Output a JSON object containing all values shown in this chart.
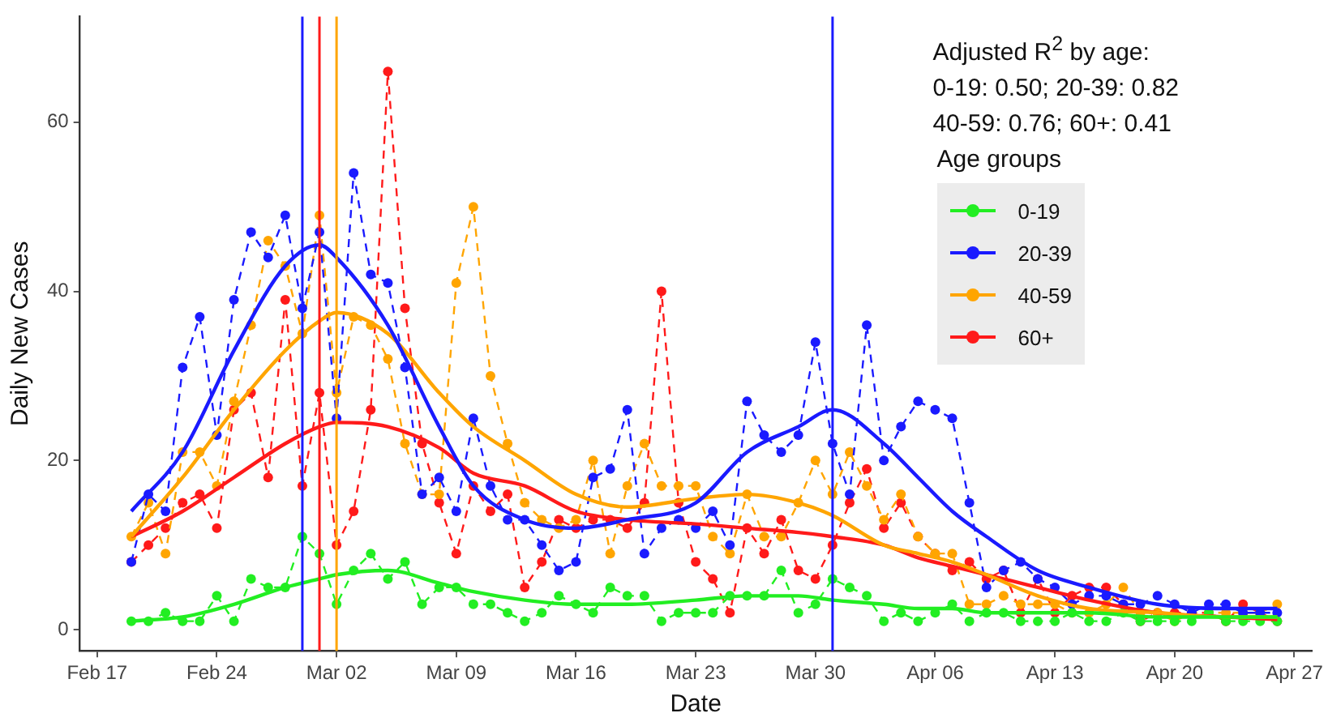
{
  "chart_data": {
    "type": "line",
    "xlabel": "Date",
    "ylabel": "Daily New Cases",
    "legend_title": "Age groups",
    "legend": "top right",
    "grid": false,
    "annotations": [
      "Adjusted R$^{2}$ by age:",
      "0-19: 0.50; 20-39: 0.82",
      "40-59: 0.76; 60+: 0.41"
    ],
    "xlim": [
      "--02-16",
      "--04-28"
    ],
    "xticks": [
      {
        "value": "--02-17",
        "label": "Feb 17"
      },
      {
        "value": "--02-24",
        "label": "Feb 24"
      },
      {
        "value": "--03-02",
        "label": "Mar 02"
      },
      {
        "value": "--03-09",
        "label": "Mar 09"
      },
      {
        "value": "--03-16",
        "label": "Mar 16"
      },
      {
        "value": "--03-23",
        "label": "Mar 23"
      },
      {
        "value": "--03-30",
        "label": "Mar 30"
      },
      {
        "value": "--04-06",
        "label": "Apr 06"
      },
      {
        "value": "--04-13",
        "label": "Apr 13"
      },
      {
        "value": "--04-20",
        "label": "Apr 20"
      },
      {
        "value": "--04-27",
        "label": "Apr 27"
      }
    ],
    "ylim": [
      -2.5,
      72.5
    ],
    "yticks": [
      0,
      20,
      40,
      60
    ],
    "x": [
      "--02-19",
      "--02-20",
      "--02-21",
      "--02-22",
      "--02-23",
      "--02-24",
      "--02-25",
      "--02-26",
      "--02-27",
      "--02-28",
      "--02-29",
      "--03-01",
      "--03-02",
      "--03-03",
      "--03-04",
      "--03-05",
      "--03-06",
      "--03-07",
      "--03-08",
      "--03-09",
      "--03-10",
      "--03-11",
      "--03-12",
      "--03-13",
      "--03-14",
      "--03-15",
      "--03-16",
      "--03-17",
      "--03-18",
      "--03-19",
      "--03-20",
      "--03-21",
      "--03-22",
      "--03-23",
      "--03-24",
      "--03-25",
      "--03-26",
      "--03-27",
      "--03-28",
      "--03-29",
      "--03-30",
      "--03-31",
      "--04-01",
      "--04-02",
      "--04-03",
      "--04-04",
      "--04-05",
      "--04-06",
      "--04-07",
      "--04-08",
      "--04-09",
      "--04-10",
      "--04-11",
      "--04-12",
      "--04-13",
      "--04-14",
      "--04-15",
      "--04-16",
      "--04-17",
      "--04-18",
      "--04-19",
      "--04-20",
      "--04-21",
      "--04-22",
      "--04-23",
      "--04-24",
      "--04-25",
      "--04-26"
    ],
    "series": [
      {
        "name": "0-19",
        "color": "#22ee22",
        "line_style": "dashed",
        "marker": "circle",
        "values": [
          1,
          1,
          2,
          1,
          1,
          4,
          1,
          6,
          5,
          5,
          11,
          9,
          3,
          7,
          9,
          6,
          8,
          3,
          5,
          5,
          3,
          3,
          2,
          1,
          2,
          4,
          3,
          2,
          5,
          4,
          4,
          1,
          2,
          2,
          2,
          4,
          4,
          4,
          7,
          2,
          3,
          6,
          5,
          4,
          1,
          2,
          1,
          2,
          3,
          1,
          2,
          2,
          1,
          1,
          1,
          2,
          1,
          1,
          2,
          1,
          1,
          1,
          1,
          2,
          1,
          1,
          1,
          1
        ]
      },
      {
        "name": "20-39",
        "color": "#1a1aff",
        "line_style": "dashed",
        "marker": "circle",
        "values": [
          8,
          16,
          14,
          31,
          37,
          23,
          39,
          47,
          44,
          49,
          38,
          47,
          25,
          54,
          42,
          41,
          31,
          16,
          18,
          14,
          25,
          17,
          13,
          13,
          10,
          7,
          8,
          18,
          19,
          26,
          9,
          12,
          13,
          12,
          14,
          10,
          27,
          23,
          21,
          23,
          34,
          22,
          16,
          36,
          20,
          24,
          27,
          26,
          25,
          15,
          5,
          7,
          8,
          6,
          5,
          3,
          4,
          4,
          3,
          3,
          4,
          3,
          2,
          3,
          3,
          2,
          2,
          2
        ]
      },
      {
        "name": "40-59",
        "color": "#ffa500",
        "line_style": "dashed",
        "marker": "circle",
        "values": [
          11,
          15,
          9,
          21,
          21,
          17,
          27,
          36,
          46,
          43,
          35,
          49,
          28,
          37,
          36,
          32,
          22,
          16,
          16,
          41,
          50,
          30,
          22,
          15,
          13,
          12,
          13,
          20,
          9,
          17,
          22,
          17,
          17,
          17,
          11,
          9,
          16,
          11,
          11,
          15,
          20,
          16,
          21,
          17,
          13,
          16,
          11,
          9,
          9,
          3,
          3,
          4,
          3,
          3,
          3,
          2,
          2,
          3,
          5,
          2,
          2,
          1,
          2,
          2,
          2,
          2,
          2,
          3
        ]
      },
      {
        "name": "60+",
        "color": "#ff1a1a",
        "line_style": "dashed",
        "marker": "circle",
        "values": [
          8,
          10,
          12,
          15,
          16,
          12,
          26,
          28,
          18,
          39,
          17,
          28,
          10,
          14,
          26,
          66,
          38,
          22,
          15,
          9,
          17,
          14,
          16,
          5,
          8,
          13,
          12,
          13,
          13,
          12,
          15,
          40,
          15,
          8,
          6,
          2,
          12,
          9,
          13,
          7,
          6,
          10,
          15,
          19,
          12,
          15,
          11,
          9,
          7,
          8,
          6,
          7,
          2,
          6,
          2,
          4,
          5,
          5,
          3,
          1,
          2,
          2,
          2,
          2,
          1,
          3,
          2,
          1
        ]
      },
      {
        "color": "#22ee22",
        "line_style": "solid",
        "marker": "none",
        "x": [
          "--02-19",
          "--02-22",
          "--02-25",
          "--02-28",
          "--03-01",
          "--03-02",
          "--03-05",
          "--03-08",
          "--03-10",
          "--03-13",
          "--03-16",
          "--03-19",
          "--03-23",
          "--03-26",
          "--03-29",
          "--03-31",
          "--04-03",
          "--04-05",
          "--04-07",
          "--04-09",
          "--04-12",
          "--04-15",
          "--04-19",
          "--04-23",
          "--04-26"
        ],
        "values": [
          1,
          1.5,
          3,
          5,
          6,
          6.5,
          7,
          5.5,
          4.5,
          3.5,
          3,
          3,
          3.5,
          4,
          4,
          3.5,
          3,
          2.5,
          2.5,
          2,
          2,
          2,
          1.5,
          1.5,
          1.5
        ]
      },
      {
        "color": "#1a1aff",
        "line_style": "solid",
        "marker": "none",
        "x": [
          "--02-19",
          "--02-22",
          "--02-25",
          "--02-28",
          "--03-01",
          "--03-02",
          "--03-05",
          "--03-08",
          "--03-10",
          "--03-13",
          "--03-16",
          "--03-19",
          "--03-23",
          "--03-26",
          "--03-29",
          "--03-31",
          "--04-03",
          "--04-05",
          "--04-07",
          "--04-09",
          "--04-12",
          "--04-15",
          "--04-19",
          "--04-23",
          "--04-26"
        ],
        "values": [
          14,
          21,
          33,
          43,
          45.5,
          44,
          36,
          24,
          17,
          13,
          12,
          13,
          15,
          21,
          24,
          26,
          22,
          18,
          14,
          11,
          7,
          5,
          3,
          2.5,
          2.5
        ]
      },
      {
        "color": "#ffa500",
        "line_style": "solid",
        "marker": "none",
        "x": [
          "--02-19",
          "--02-22",
          "--02-25",
          "--02-28",
          "--03-01",
          "--03-02",
          "--03-05",
          "--03-08",
          "--03-10",
          "--03-13",
          "--03-16",
          "--03-19",
          "--03-23",
          "--03-26",
          "--03-29",
          "--03-31",
          "--04-03",
          "--04-05",
          "--04-07",
          "--04-09",
          "--04-12",
          "--04-15",
          "--04-19",
          "--04-23",
          "--04-26"
        ],
        "values": [
          11,
          18,
          26,
          33,
          36.5,
          37.5,
          35,
          28,
          24,
          20,
          16,
          14.5,
          15.5,
          16,
          15,
          13.5,
          10,
          9,
          8,
          6.5,
          4,
          2.5,
          2,
          1.5,
          1.5
        ]
      },
      {
        "color": "#ff1a1a",
        "line_style": "solid",
        "marker": "none",
        "x": [
          "--02-19",
          "--02-22",
          "--02-25",
          "--02-28",
          "--03-01",
          "--03-02",
          "--03-05",
          "--03-08",
          "--03-10",
          "--03-13",
          "--03-16",
          "--03-19",
          "--03-23",
          "--03-26",
          "--03-29",
          "--03-31",
          "--04-03",
          "--04-05",
          "--04-07",
          "--04-09",
          "--04-12",
          "--04-15",
          "--04-19",
          "--04-23",
          "--04-26"
        ],
        "values": [
          11,
          14,
          18,
          22,
          24,
          24.5,
          24,
          21.5,
          18.5,
          17,
          14,
          13,
          12.5,
          12,
          11.5,
          11,
          10,
          8.5,
          7.5,
          6.5,
          5,
          3.5,
          2,
          1.5,
          1.2
        ]
      }
    ],
    "ref_lines": [
      {
        "axis": "x",
        "value": "--02-29",
        "color": "#1a1aff"
      },
      {
        "axis": "x",
        "value": "--03-01",
        "color": "#ff1a1a"
      },
      {
        "axis": "x",
        "value": "--03-02",
        "color": "#ffa500"
      },
      {
        "axis": "x",
        "value": "--03-31",
        "color": "#1a1aff"
      }
    ]
  }
}
